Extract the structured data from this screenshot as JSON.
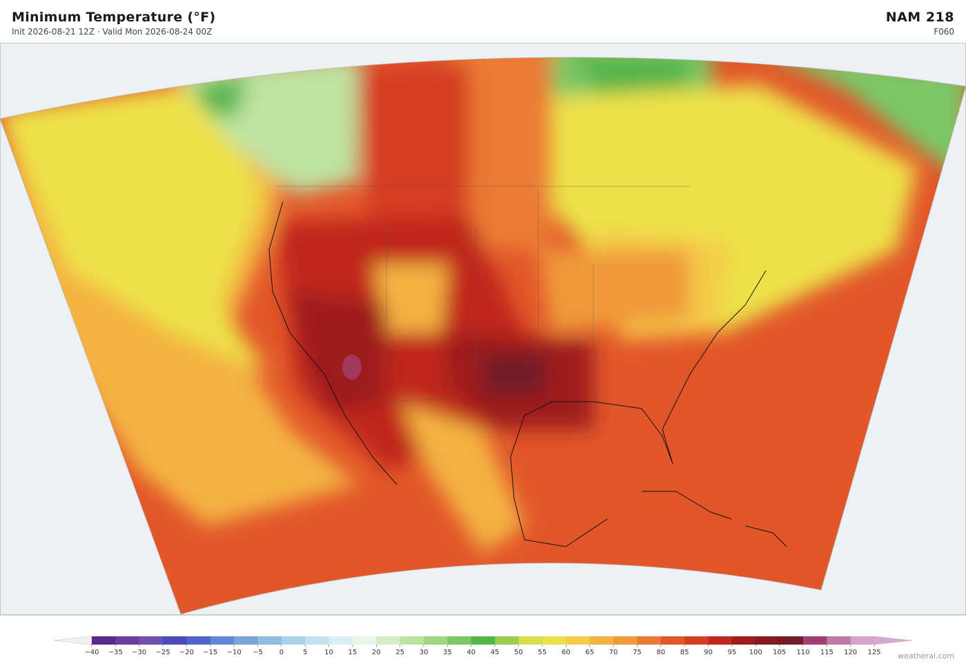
{
  "header": {
    "title": "Minimum Temperature  (°F)",
    "subtitle": "Init 2026-08-21 12Z   ·   Valid Mon 2026-08-24 00Z",
    "model": "NAM  218",
    "forecast_hour": "F060"
  },
  "colorbar": {
    "ticks": [
      {
        "value": -40,
        "label": "−40"
      },
      {
        "value": -35,
        "label": "−35"
      },
      {
        "value": -30,
        "label": "−30"
      },
      {
        "value": -25,
        "label": "−25"
      },
      {
        "value": -20,
        "label": "−20"
      },
      {
        "value": -15,
        "label": "−15"
      },
      {
        "value": -10,
        "label": "−10"
      },
      {
        "value": -5,
        "label": "−5"
      },
      0,
      5,
      10,
      15,
      20,
      25,
      30,
      35,
      40,
      45,
      50,
      55,
      60,
      65,
      70,
      75,
      80,
      85,
      90,
      95,
      100,
      105,
      110,
      115,
      120,
      125
    ],
    "colors": [
      "#5b2a8c",
      "#6a3d9a",
      "#7050b0",
      "#4a4ab8",
      "#4f63c8",
      "#6287d4",
      "#7ba3da",
      "#8fbde0",
      "#a9d2ea",
      "#c4e3f0",
      "#d9eef2",
      "#e8f5e8",
      "#d6edc8",
      "#bde3a0",
      "#9fd67f",
      "#7cc766",
      "#55b44c",
      "#9ccc50",
      "#d4df4a",
      "#ede14a",
      "#f4cc4a",
      "#f4b342",
      "#f09a3a",
      "#eb7a34",
      "#e2572a",
      "#d43e24",
      "#c0281f",
      "#9e1b1e",
      "#861820",
      "#711c28",
      "#a04070",
      "#c07aa8",
      "#d7a4cc"
    ],
    "under_color": "#f2f2f2",
    "over_color": "#d9a8d4"
  },
  "footer": {
    "credit": "weatherai.com"
  }
}
